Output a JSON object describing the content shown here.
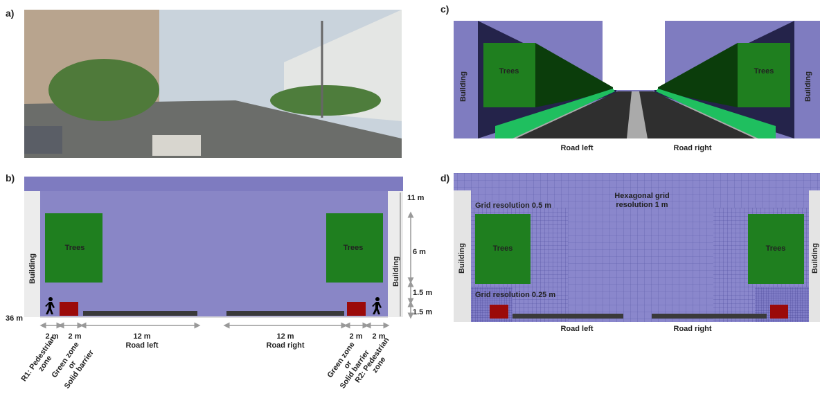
{
  "panel_a": {
    "label": "a)"
  },
  "panel_b": {
    "label": "b)",
    "trees_left": "Trees",
    "trees_right": "Trees",
    "building_left": "Building",
    "building_right": "Building",
    "heights": [
      "11 m",
      "6 m",
      "1.5 m",
      "1.5 m"
    ],
    "total_width": "36 m",
    "widths": [
      "2 m",
      "2 m",
      "12 m",
      "12 m",
      "2 m",
      "2 m"
    ],
    "road_left": "Road left",
    "road_right": "Road right",
    "zone_r1": [
      "R1: Pedestrian",
      "zone"
    ],
    "zone_green_left": [
      "Green zone",
      "or",
      "Solid barrier"
    ],
    "zone_green_right": [
      "Green zone",
      "or",
      "Solid barrier"
    ],
    "zone_r2": [
      "R2: Pedestrian",
      "zone"
    ]
  },
  "panel_c": {
    "label": "c)",
    "trees_left": "Trees",
    "trees_right": "Trees",
    "building_left": "Building",
    "building_right": "Building",
    "road_left": "Road left",
    "road_right": "Road right"
  },
  "panel_d": {
    "label": "d)",
    "hex_grid": [
      "Hexagonal grid",
      "resolution 1 m"
    ],
    "grid_05": "Grid resolution 0.5 m",
    "grid_025": "Grid resolution 0.25 m",
    "trees_left": "Trees",
    "trees_right": "Trees",
    "building_left": "Building",
    "building_right": "Building",
    "road_left": "Road left",
    "road_right": "Road right"
  }
}
